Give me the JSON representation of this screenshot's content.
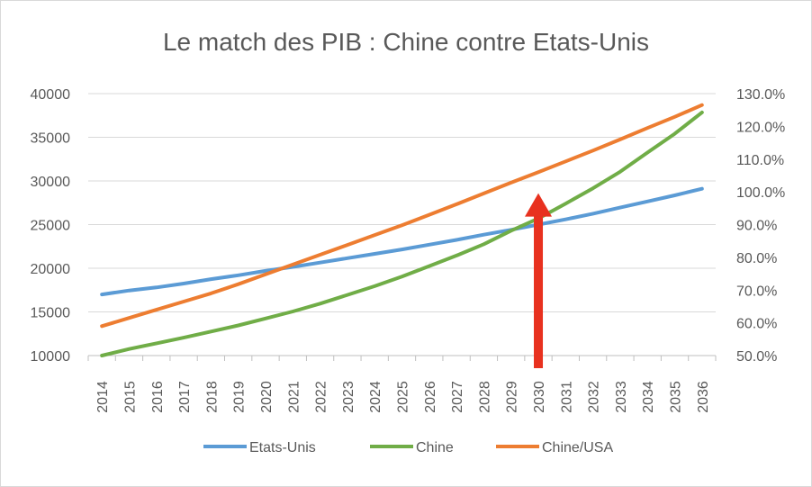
{
  "chart_data": {
    "type": "line",
    "title": "Le match des PIB : Chine contre Etats-Unis",
    "xlabel": "",
    "ylabel": "",
    "x": [
      "2014",
      "2015",
      "2016",
      "2017",
      "2018",
      "2019",
      "2020",
      "2021",
      "2022",
      "2023",
      "2024",
      "2025",
      "2026",
      "2027",
      "2028",
      "2029",
      "2030",
      "2031",
      "2032",
      "2033",
      "2034",
      "2035",
      "2036"
    ],
    "ylim": [
      10000,
      40000
    ],
    "yticks": [
      "40000",
      "35000",
      "30000",
      "25000",
      "20000",
      "15000",
      "10000"
    ],
    "y2lim": [
      50,
      130
    ],
    "y2ticks": [
      "130.0%",
      "120.0%",
      "110.0%",
      "100.0%",
      "90.0%",
      "80.0%",
      "70.0%",
      "60.0%",
      "50.0%"
    ],
    "grid": true,
    "legend_position": "bottom",
    "series": [
      {
        "name": "Etats-Unis",
        "axis": "left",
        "color": "#5b9bd5",
        "values": [
          17000,
          17450,
          17800,
          18250,
          18750,
          19200,
          19700,
          20150,
          20650,
          21150,
          21650,
          22150,
          22700,
          23250,
          23850,
          24400,
          25000,
          25600,
          26250,
          26950,
          27650,
          28350,
          29100
        ]
      },
      {
        "name": "Chine",
        "axis": "left",
        "color": "#70ad47",
        "values": [
          10000,
          10750,
          11400,
          12050,
          12750,
          13450,
          14250,
          15050,
          15950,
          16950,
          17950,
          19050,
          20250,
          21450,
          22750,
          24300,
          25700,
          27400,
          29150,
          31050,
          33250,
          35400,
          37850
        ]
      },
      {
        "name": "Chine/USA",
        "axis": "right",
        "color": "#ed7d31",
        "values": [
          59.0,
          61.5,
          64.0,
          66.5,
          69.0,
          71.8,
          74.8,
          77.8,
          80.8,
          83.8,
          86.8,
          89.8,
          93.0,
          96.2,
          99.5,
          102.8,
          106.0,
          109.3,
          112.6,
          116.0,
          119.5,
          122.9,
          126.5
        ]
      }
    ],
    "annotation": {
      "type": "arrow",
      "x": "2030",
      "color": "#e8311f",
      "from_y": 10000,
      "to_y": 28600
    }
  }
}
